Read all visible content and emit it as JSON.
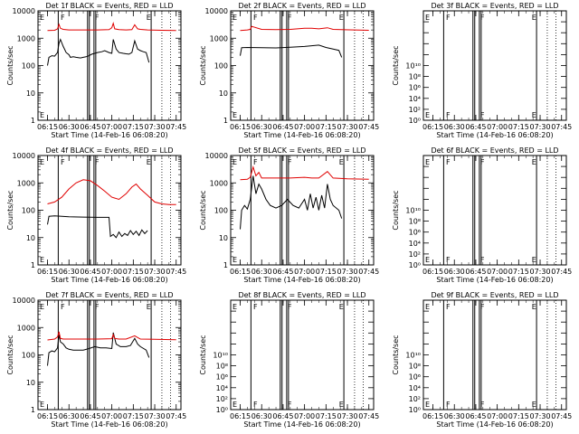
{
  "x_ticks": [
    "06:15",
    "06:30",
    "06:45",
    "07:00",
    "07:15",
    "07:30",
    "07:45"
  ],
  "x_range": [
    "06:08:20",
    "07:48:20"
  ],
  "xlabel": "Start Time (14-Feb-16 06:08:20)",
  "ylabel": "Counts/sec",
  "time_markers": {
    "single_lines": [
      "06:22:30",
      "06:47:30",
      "06:48:45",
      "07:27:30"
    ],
    "double_line_a": [
      "06:43:00",
      "06:44:15"
    ],
    "dotted_lines": [
      "07:35:00",
      "07:41:00"
    ]
  },
  "marker_letters": {
    "left_top": [
      "E",
      "F",
      "F",
      "E"
    ],
    "left_bottom": [
      "E",
      "F",
      "F",
      "E"
    ]
  },
  "chart_data": [
    {
      "type": "line",
      "title": "Det 1f BLACK = Events, RED = LLD",
      "ylog": true,
      "ylim": [
        1,
        10000
      ],
      "yticks": [
        "1",
        "10",
        "100",
        "1000",
        "10000"
      ],
      "series": [
        {
          "name": "BLACK = Events",
          "color": "#000000",
          "t": [
            "06:15",
            "06:16",
            "06:18",
            "06:20",
            "06:22",
            "06:23",
            "06:24",
            "06:26",
            "06:28",
            "06:30",
            "06:31",
            "06:33",
            "06:35",
            "06:38",
            "06:40",
            "06:42",
            "06:44",
            "06:46",
            "06:48",
            "06:50",
            "06:53",
            "06:55",
            "06:58",
            "07:00",
            "07:01",
            "07:03",
            "07:05",
            "07:08",
            "07:10",
            "07:12",
            "07:14",
            "07:16",
            "07:18",
            "07:20",
            "07:22",
            "07:24",
            "07:26"
          ],
          "values": [
            100,
            200,
            230,
            220,
            300,
            650,
            900,
            500,
            300,
            250,
            200,
            210,
            200,
            190,
            200,
            210,
            230,
            260,
            280,
            300,
            320,
            350,
            300,
            280,
            900,
            400,
            300,
            280,
            270,
            260,
            300,
            800,
            400,
            350,
            320,
            300,
            130
          ]
        },
        {
          "name": "RED = LLD",
          "color": "#e00000",
          "t": [
            "06:15",
            "06:20",
            "06:22",
            "06:23",
            "06:24",
            "06:26",
            "06:30",
            "06:40",
            "06:50",
            "06:58",
            "07:00",
            "07:01",
            "07:02",
            "07:05",
            "07:10",
            "07:14",
            "07:16",
            "07:18",
            "07:20",
            "07:25",
            "07:35",
            "07:45"
          ],
          "values": [
            1900,
            1950,
            2200,
            3200,
            2300,
            2100,
            2000,
            2000,
            2000,
            2050,
            2400,
            3500,
            2200,
            2050,
            2000,
            2050,
            3100,
            2200,
            2100,
            2000,
            1950,
            1900
          ]
        }
      ]
    },
    {
      "type": "line",
      "title": "Det 2f BLACK = Events, RED = LLD",
      "ylog": true,
      "ylim": [
        1,
        10000
      ],
      "yticks": [
        "1",
        "10",
        "100",
        "1000",
        "10000"
      ],
      "series": [
        {
          "name": "BLACK = Events",
          "color": "#000000",
          "t": [
            "06:15",
            "06:16",
            "06:20",
            "06:30",
            "06:40",
            "06:50",
            "07:00",
            "07:10",
            "07:15",
            "07:20",
            "07:24",
            "07:26"
          ],
          "values": [
            230,
            450,
            460,
            450,
            440,
            470,
            500,
            560,
            460,
            400,
            360,
            200
          ]
        },
        {
          "name": "RED = LLD",
          "color": "#e00000",
          "t": [
            "06:15",
            "06:20",
            "06:22",
            "06:23",
            "06:30",
            "06:40",
            "06:50",
            "07:00",
            "07:05",
            "07:10",
            "07:16",
            "07:20",
            "07:35",
            "07:45"
          ],
          "values": [
            1900,
            2000,
            2100,
            2700,
            2100,
            2050,
            2100,
            2300,
            2300,
            2200,
            2400,
            2100,
            2000,
            1950
          ]
        }
      ]
    },
    {
      "type": "line",
      "title": "Det 3f BLACK = Events, RED = LLD",
      "ylog": true,
      "ylim": [
        1,
        10000000000
      ],
      "yticks": [
        "10⁰",
        "10²",
        "10⁴",
        "10⁶",
        "10⁸",
        "10¹⁰"
      ],
      "series": []
    },
    {
      "type": "line",
      "title": "Det 4f BLACK = Events, RED = LLD",
      "ylog": true,
      "ylim": [
        1,
        10000
      ],
      "yticks": [
        "1",
        "10",
        "100",
        "1000",
        "10000"
      ],
      "series": [
        {
          "name": "BLACK = Events",
          "color": "#000000",
          "t": [
            "06:15",
            "06:16",
            "06:20",
            "06:30",
            "06:40",
            "06:50",
            "06:58",
            "06:59",
            "07:01",
            "07:03",
            "07:05",
            "07:07",
            "07:09",
            "07:11",
            "07:13",
            "07:15",
            "07:17",
            "07:19",
            "07:21",
            "07:23",
            "07:25"
          ],
          "values": [
            30,
            60,
            62,
            58,
            56,
            55,
            55,
            11,
            13,
            10,
            16,
            11,
            14,
            12,
            18,
            13,
            17,
            12,
            19,
            14,
            18
          ]
        },
        {
          "name": "RED = LLD",
          "color": "#e00000",
          "t": [
            "06:15",
            "06:20",
            "06:25",
            "06:30",
            "06:35",
            "06:40",
            "06:45",
            "06:50",
            "06:55",
            "07:00",
            "07:05",
            "07:10",
            "07:14",
            "07:17",
            "07:20",
            "07:25",
            "07:30",
            "07:35",
            "07:40",
            "07:45"
          ],
          "values": [
            170,
            200,
            300,
            600,
            1000,
            1300,
            1200,
            800,
            500,
            300,
            250,
            400,
            700,
            900,
            600,
            350,
            200,
            170,
            160,
            160
          ]
        }
      ]
    },
    {
      "type": "line",
      "title": "Det 5f BLACK = Events, RED = LLD",
      "ylog": true,
      "ylim": [
        1,
        10000
      ],
      "yticks": [
        "1",
        "10",
        "100",
        "1000",
        "10000"
      ],
      "series": [
        {
          "name": "BLACK = Events",
          "color": "#000000",
          "t": [
            "06:15",
            "06:16",
            "06:18",
            "06:20",
            "06:22",
            "06:24",
            "06:26",
            "06:28",
            "06:30",
            "06:33",
            "06:36",
            "06:40",
            "06:44",
            "06:48",
            "06:52",
            "06:56",
            "07:00",
            "07:02",
            "07:04",
            "07:06",
            "07:08",
            "07:10",
            "07:12",
            "07:14",
            "07:16",
            "07:18",
            "07:20",
            "07:24",
            "07:26"
          ],
          "values": [
            20,
            100,
            150,
            110,
            250,
            1800,
            400,
            900,
            600,
            250,
            150,
            120,
            150,
            250,
            150,
            120,
            250,
            100,
            400,
            120,
            300,
            100,
            350,
            120,
            900,
            250,
            150,
            100,
            50
          ]
        },
        {
          "name": "RED = LLD",
          "color": "#e00000",
          "t": [
            "06:15",
            "06:20",
            "06:22",
            "06:24",
            "06:26",
            "06:28",
            "06:30",
            "06:40",
            "06:50",
            "07:00",
            "07:05",
            "07:10",
            "07:16",
            "07:20",
            "07:30",
            "07:45"
          ],
          "values": [
            1300,
            1350,
            1600,
            3800,
            1800,
            2400,
            1500,
            1500,
            1500,
            1600,
            1500,
            1500,
            2600,
            1500,
            1400,
            1350
          ]
        }
      ]
    },
    {
      "type": "line",
      "title": "Det 6f BLACK = Events, RED = LLD",
      "ylog": true,
      "ylim": [
        1,
        10000000000
      ],
      "yticks": [
        "10⁰",
        "10²",
        "10⁴",
        "10⁶",
        "10⁸",
        "10¹⁰"
      ],
      "series": []
    },
    {
      "type": "line",
      "title": "Det 7f BLACK = Events, RED = LLD",
      "ylog": true,
      "ylim": [
        1,
        10000
      ],
      "yticks": [
        "1",
        "10",
        "100",
        "1000",
        "10000"
      ],
      "series": [
        {
          "name": "BLACK = Events",
          "color": "#000000",
          "t": [
            "06:15",
            "06:16",
            "06:18",
            "06:20",
            "06:22",
            "06:23",
            "06:24",
            "06:26",
            "06:28",
            "06:30",
            "06:33",
            "06:36",
            "06:40",
            "06:44",
            "06:48",
            "06:52",
            "06:56",
            "07:00",
            "07:01",
            "07:03",
            "07:06",
            "07:10",
            "07:13",
            "07:16",
            "07:18",
            "07:20",
            "07:24",
            "07:26"
          ],
          "values": [
            40,
            120,
            140,
            130,
            180,
            550,
            300,
            250,
            180,
            160,
            150,
            150,
            150,
            170,
            200,
            180,
            180,
            170,
            650,
            250,
            200,
            200,
            220,
            400,
            250,
            200,
            150,
            80
          ]
        },
        {
          "name": "RED = LLD",
          "color": "#e00000",
          "t": [
            "06:15",
            "06:20",
            "06:22",
            "06:23",
            "06:24",
            "06:26",
            "06:30",
            "06:40",
            "06:50",
            "07:00",
            "07:01",
            "07:02",
            "07:05",
            "07:10",
            "07:16",
            "07:20",
            "07:30",
            "07:45"
          ],
          "values": [
            350,
            380,
            450,
            700,
            400,
            380,
            380,
            380,
            380,
            390,
            550,
            400,
            380,
            380,
            500,
            380,
            370,
            360
          ]
        }
      ]
    },
    {
      "type": "line",
      "title": "Det 8f BLACK = Events, RED = LLD",
      "ylog": true,
      "ylim": [
        1,
        10000000000
      ],
      "yticks": [
        "10⁰",
        "10²",
        "10⁴",
        "10⁶",
        "10⁸",
        "10¹⁰"
      ],
      "series": []
    },
    {
      "type": "line",
      "title": "Det 9f BLACK = Events, RED = LLD",
      "ylog": true,
      "ylim": [
        1,
        10000000000
      ],
      "yticks": [
        "10⁰",
        "10²",
        "10⁴",
        "10⁶",
        "10⁸",
        "10¹⁰"
      ],
      "series": []
    }
  ]
}
